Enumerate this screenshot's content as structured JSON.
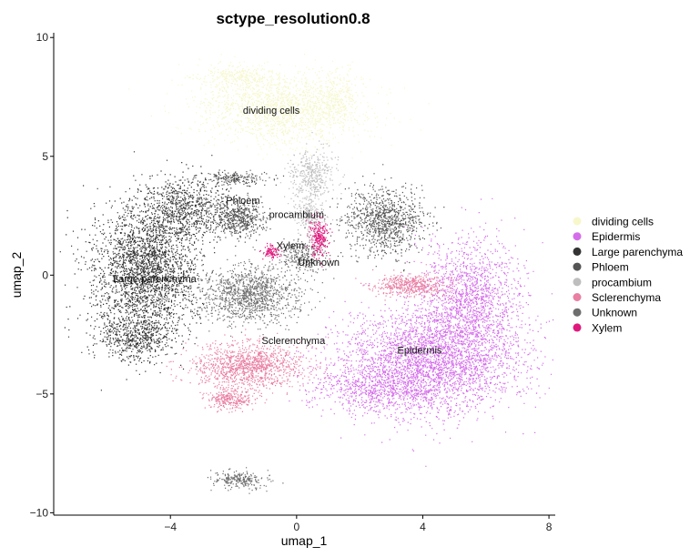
{
  "chart_data": {
    "type": "scatter",
    "title": "sctype_resolution0.8",
    "xlabel": "umap_1",
    "ylabel": "umap_2",
    "xlim": [
      -7.7,
      8.2
    ],
    "ylim": [
      -10.1,
      10.2
    ],
    "xticks": [
      -4,
      0,
      4,
      8
    ],
    "yticks": [
      -10,
      -5,
      0,
      5,
      10
    ],
    "xtick_labels": [
      "−4",
      "0",
      "4",
      "8"
    ],
    "ytick_labels": [
      "−10",
      "−5",
      "0",
      "5",
      "10"
    ],
    "grid": false,
    "legend_position": "right",
    "series": [
      {
        "name": "dividing cells",
        "color": "#F7F7CB",
        "label": {
          "text": "dividing cells",
          "x": -0.8,
          "y": 6.8
        },
        "blobs": [
          [
            -0.5,
            7.0,
            2.8,
            1.6,
            1700
          ],
          [
            -2.0,
            8.3,
            1.5,
            0.7,
            300
          ],
          [
            1.2,
            7.5,
            1.0,
            1.3,
            250
          ]
        ]
      },
      {
        "name": "Epidermis",
        "color": "#D56DEB",
        "label": {
          "text": "Epidermis",
          "x": 3.9,
          "y": -3.3
        },
        "blobs": [
          [
            4.2,
            -3.6,
            3.2,
            2.4,
            3200
          ],
          [
            5.5,
            -1.0,
            1.8,
            2.8,
            1500
          ],
          [
            2.5,
            -4.8,
            2.2,
            1.0,
            600
          ]
        ]
      },
      {
        "name": "Large parenchyma",
        "color": "#333333",
        "label": {
          "text": "Large parenchyma",
          "x": -4.5,
          "y": -0.3
        },
        "blobs": [
          [
            -4.8,
            0.2,
            1.8,
            3.2,
            2600
          ],
          [
            -3.5,
            2.8,
            1.6,
            1.5,
            800
          ],
          [
            -5.2,
            -2.6,
            1.3,
            1.0,
            500
          ]
        ]
      },
      {
        "name": "Phloem",
        "color": "#555555",
        "label": {
          "text": "Phloem",
          "x": -1.7,
          "y": 3.0
        },
        "blobs": [
          [
            -1.8,
            2.4,
            0.9,
            0.8,
            500
          ],
          [
            2.8,
            2.3,
            1.4,
            1.5,
            1000
          ],
          [
            -2.0,
            4.1,
            1.2,
            0.3,
            200
          ]
        ]
      },
      {
        "name": "procambium",
        "color": "#BEBEBE",
        "label": {
          "text": "procambium",
          "x": 0.0,
          "y": 2.4
        },
        "blobs": [
          [
            0.5,
            4.2,
            0.8,
            1.2,
            400
          ],
          [
            0.4,
            2.6,
            0.5,
            0.8,
            200
          ]
        ]
      },
      {
        "name": "Sclerenchyma",
        "color": "#E97FA3",
        "label": {
          "text": "Sclerenchyma",
          "x": -0.1,
          "y": -2.9
        },
        "blobs": [
          [
            -1.5,
            -3.8,
            1.9,
            1.1,
            1200
          ],
          [
            -2.1,
            -5.2,
            0.8,
            0.5,
            300
          ],
          [
            3.6,
            -0.4,
            1.4,
            0.5,
            500
          ]
        ]
      },
      {
        "name": "Unknown",
        "color": "#6E6E6E",
        "label": {
          "text": "Unknown",
          "x": 0.7,
          "y": 0.4
        },
        "blobs": [
          [
            -1.5,
            -0.8,
            1.8,
            1.3,
            1200
          ],
          [
            -1.8,
            -8.6,
            0.9,
            0.4,
            250
          ],
          [
            0.2,
            0.8,
            0.8,
            0.8,
            300
          ]
        ]
      },
      {
        "name": "Xylem",
        "color": "#E0197D",
        "label": {
          "text": "Xylem",
          "x": -0.2,
          "y": 1.1
        },
        "blobs": [
          [
            0.7,
            1.6,
            0.35,
            0.9,
            250
          ],
          [
            -0.8,
            1.0,
            0.35,
            0.35,
            100
          ]
        ]
      }
    ]
  }
}
